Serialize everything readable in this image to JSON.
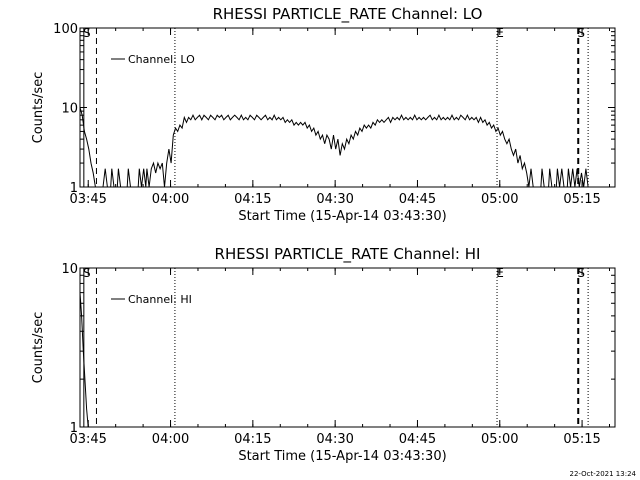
{
  "footer": {
    "timestamp": "22-Oct-2021 13:24"
  },
  "chart_data": [
    {
      "type": "line",
      "title": "RHESSI PARTICLE_RATE Channel: LO",
      "xlabel": "Start Time (15-Apr-14 03:43:30)",
      "ylabel": "Counts/sec",
      "x_unit": "minutes since 03:43:30",
      "xlim": [
        0,
        97.5
      ],
      "x_ticks": [
        {
          "x": 1.5,
          "label": "03:45"
        },
        {
          "x": 16.5,
          "label": "04:00"
        },
        {
          "x": 31.5,
          "label": "04:15"
        },
        {
          "x": 46.5,
          "label": "04:30"
        },
        {
          "x": 61.5,
          "label": "04:45"
        },
        {
          "x": 76.5,
          "label": "05:00"
        },
        {
          "x": 91.5,
          "label": "05:15"
        }
      ],
      "yscale": "log",
      "ylim": [
        1,
        100
      ],
      "y_ticks": [
        {
          "y": 1,
          "label": "1"
        },
        {
          "y": 10,
          "label": "10"
        },
        {
          "y": 100,
          "label": "100"
        }
      ],
      "legend": {
        "label": "Channel: LO",
        "position": "top-left"
      },
      "markers": [
        {
          "x": 0.7,
          "style": "solid",
          "label": "S"
        },
        {
          "x": 3.0,
          "style": "dashed",
          "label": ""
        },
        {
          "x": 17.3,
          "style": "dotted",
          "label": ""
        },
        {
          "x": 76.0,
          "style": "dotted",
          "label": "E"
        },
        {
          "x": 90.8,
          "style": "dashed",
          "label": "S"
        },
        {
          "x": 92.6,
          "style": "dotted",
          "label": ""
        }
      ],
      "series": [
        {
          "values": [
            [
              0,
              10
            ],
            [
              0.4,
              8
            ],
            [
              0.8,
              5
            ],
            [
              1.2,
              4
            ],
            [
              1.6,
              3
            ],
            [
              2.0,
              2
            ],
            [
              2.4,
              1.5
            ],
            [
              2.8,
              1
            ],
            [
              3.2,
              1
            ],
            [
              4.2,
              1
            ],
            [
              4.6,
              1.7
            ],
            [
              5.0,
              1
            ],
            [
              5.6,
              1
            ],
            [
              5.8,
              1.7
            ],
            [
              6.2,
              1
            ],
            [
              6.8,
              1
            ],
            [
              7.0,
              1.7
            ],
            [
              7.4,
              1
            ],
            [
              8.6,
              1
            ],
            [
              8.8,
              1.7
            ],
            [
              9.2,
              1
            ],
            [
              10.6,
              1
            ],
            [
              10.8,
              1.7
            ],
            [
              11.2,
              1
            ],
            [
              11.6,
              1.7
            ],
            [
              12.0,
              1
            ],
            [
              12.2,
              1.7
            ],
            [
              12.6,
              1
            ],
            [
              13.0,
              1.7
            ],
            [
              13.4,
              2
            ],
            [
              13.8,
              1.5
            ],
            [
              14.2,
              2
            ],
            [
              14.6,
              1.7
            ],
            [
              15.0,
              2
            ],
            [
              15.4,
              1
            ],
            [
              15.8,
              2
            ],
            [
              16.2,
              3
            ],
            [
              16.6,
              2
            ],
            [
              17.0,
              4.5
            ],
            [
              17.4,
              5.5
            ],
            [
              17.8,
              5
            ],
            [
              18.2,
              6
            ],
            [
              18.6,
              5.5
            ],
            [
              19.0,
              7.5
            ],
            [
              19.4,
              6.5
            ],
            [
              19.8,
              7.5
            ],
            [
              20.2,
              7
            ],
            [
              20.6,
              8
            ],
            [
              21.0,
              7
            ],
            [
              21.4,
              7.5
            ],
            [
              21.8,
              8
            ],
            [
              22.2,
              7
            ],
            [
              22.6,
              8
            ],
            [
              23.0,
              7.5
            ],
            [
              23.4,
              7
            ],
            [
              23.8,
              8
            ],
            [
              24.2,
              7.5
            ],
            [
              24.6,
              7
            ],
            [
              25.0,
              8
            ],
            [
              25.4,
              7.5
            ],
            [
              25.8,
              8
            ],
            [
              26.2,
              7
            ],
            [
              26.6,
              7.5
            ],
            [
              27.0,
              8
            ],
            [
              27.4,
              7
            ],
            [
              27.8,
              7.5
            ],
            [
              28.2,
              8
            ],
            [
              28.6,
              7.5
            ],
            [
              29.0,
              7
            ],
            [
              29.4,
              8
            ],
            [
              29.8,
              7
            ],
            [
              30.2,
              7.5
            ],
            [
              30.6,
              7
            ],
            [
              31.0,
              8
            ],
            [
              31.4,
              7.5
            ],
            [
              31.8,
              7
            ],
            [
              32.2,
              8
            ],
            [
              32.6,
              7.5
            ],
            [
              33.0,
              7
            ],
            [
              33.4,
              7.5
            ],
            [
              33.8,
              8
            ],
            [
              34.2,
              7
            ],
            [
              34.6,
              7.5
            ],
            [
              35.0,
              7
            ],
            [
              35.4,
              8
            ],
            [
              35.8,
              7
            ],
            [
              36.2,
              7.5
            ],
            [
              36.6,
              7
            ],
            [
              37.0,
              7.5
            ],
            [
              37.4,
              6.5
            ],
            [
              37.8,
              7
            ],
            [
              38.2,
              6.5
            ],
            [
              38.6,
              7
            ],
            [
              39.0,
              6
            ],
            [
              39.4,
              6.5
            ],
            [
              39.8,
              6
            ],
            [
              40.2,
              6.5
            ],
            [
              40.6,
              6
            ],
            [
              41.0,
              6.5
            ],
            [
              41.4,
              5.5
            ],
            [
              41.8,
              6
            ],
            [
              42.2,
              5
            ],
            [
              42.6,
              5.5
            ],
            [
              43.0,
              4.5
            ],
            [
              43.4,
              5
            ],
            [
              43.8,
              4
            ],
            [
              44.2,
              4.5
            ],
            [
              44.6,
              3.5
            ],
            [
              45.0,
              4.5
            ],
            [
              45.4,
              4
            ],
            [
              45.8,
              3
            ],
            [
              46.2,
              4.5
            ],
            [
              46.6,
              3
            ],
            [
              47.0,
              4
            ],
            [
              47.4,
              2.5
            ],
            [
              47.8,
              3.5
            ],
            [
              48.2,
              3
            ],
            [
              48.6,
              4
            ],
            [
              49.0,
              3.5
            ],
            [
              49.4,
              4.5
            ],
            [
              49.8,
              4
            ],
            [
              50.2,
              5
            ],
            [
              50.6,
              4.5
            ],
            [
              51.0,
              5.5
            ],
            [
              51.4,
              5
            ],
            [
              51.8,
              6
            ],
            [
              52.2,
              5.5
            ],
            [
              52.6,
              6
            ],
            [
              53.0,
              5.5
            ],
            [
              53.4,
              6.5
            ],
            [
              53.8,
              6
            ],
            [
              54.2,
              7
            ],
            [
              54.6,
              6.5
            ],
            [
              55.0,
              7
            ],
            [
              55.4,
              6.5
            ],
            [
              55.8,
              7
            ],
            [
              56.2,
              7.5
            ],
            [
              56.6,
              6.5
            ],
            [
              57.0,
              7.5
            ],
            [
              57.4,
              7
            ],
            [
              57.8,
              7.5
            ],
            [
              58.2,
              7
            ],
            [
              58.6,
              8
            ],
            [
              59.0,
              7
            ],
            [
              59.4,
              7.5
            ],
            [
              59.8,
              7
            ],
            [
              60.2,
              7.5
            ],
            [
              60.6,
              7
            ],
            [
              61.0,
              8
            ],
            [
              61.4,
              7
            ],
            [
              61.8,
              7.5
            ],
            [
              62.2,
              7
            ],
            [
              62.6,
              7.5
            ],
            [
              63.0,
              7
            ],
            [
              63.4,
              7.5
            ],
            [
              63.8,
              8
            ],
            [
              64.2,
              7
            ],
            [
              64.6,
              7.5
            ],
            [
              65.0,
              7
            ],
            [
              65.4,
              8
            ],
            [
              65.8,
              7
            ],
            [
              66.2,
              7.5
            ],
            [
              66.6,
              7
            ],
            [
              67.0,
              7.5
            ],
            [
              67.4,
              7
            ],
            [
              67.8,
              8
            ],
            [
              68.2,
              7
            ],
            [
              68.6,
              7.5
            ],
            [
              69.0,
              7
            ],
            [
              69.4,
              8
            ],
            [
              69.8,
              7.5
            ],
            [
              70.2,
              7
            ],
            [
              70.6,
              8
            ],
            [
              71.0,
              7
            ],
            [
              71.4,
              7.5
            ],
            [
              71.8,
              7
            ],
            [
              72.2,
              7.5
            ],
            [
              72.6,
              6.5
            ],
            [
              73.0,
              7.5
            ],
            [
              73.4,
              6.5
            ],
            [
              73.8,
              7
            ],
            [
              74.2,
              6
            ],
            [
              74.6,
              6.5
            ],
            [
              75.0,
              5.5
            ],
            [
              75.4,
              6
            ],
            [
              75.8,
              5
            ],
            [
              76.2,
              5.5
            ],
            [
              76.6,
              4.5
            ],
            [
              77.0,
              5
            ],
            [
              77.4,
              4
            ],
            [
              77.8,
              3.5
            ],
            [
              78.2,
              4
            ],
            [
              78.6,
              3
            ],
            [
              79.0,
              2.5
            ],
            [
              79.4,
              3
            ],
            [
              79.8,
              2
            ],
            [
              80.2,
              2.5
            ],
            [
              80.6,
              1.7
            ],
            [
              81.0,
              2
            ],
            [
              81.4,
              1.5
            ],
            [
              81.8,
              1
            ],
            [
              82.2,
              1.7
            ],
            [
              82.6,
              1
            ],
            [
              84.0,
              1
            ],
            [
              84.2,
              1.7
            ],
            [
              84.6,
              1
            ],
            [
              85.4,
              1
            ],
            [
              85.6,
              1.7
            ],
            [
              86.0,
              1
            ],
            [
              86.8,
              1
            ],
            [
              87.0,
              1.7
            ],
            [
              87.4,
              1
            ],
            [
              87.8,
              1.7
            ],
            [
              88.2,
              1
            ],
            [
              88.8,
              1
            ],
            [
              89.0,
              1.7
            ],
            [
              89.4,
              1
            ],
            [
              89.8,
              1.7
            ],
            [
              90.2,
              1
            ],
            [
              90.6,
              1.7
            ],
            [
              91.0,
              1
            ],
            [
              91.4,
              1.5
            ],
            [
              91.8,
              1
            ],
            [
              92.2,
              1.7
            ],
            [
              92.6,
              1
            ],
            [
              97.5,
              1
            ]
          ]
        }
      ]
    },
    {
      "type": "line",
      "title": "RHESSI PARTICLE_RATE Channel: HI",
      "xlabel": "Start Time (15-Apr-14 03:43:30)",
      "ylabel": "Counts/sec",
      "x_unit": "minutes since 03:43:30",
      "xlim": [
        0,
        97.5
      ],
      "x_ticks": [
        {
          "x": 1.5,
          "label": "03:45"
        },
        {
          "x": 16.5,
          "label": "04:00"
        },
        {
          "x": 31.5,
          "label": "04:15"
        },
        {
          "x": 46.5,
          "label": "04:30"
        },
        {
          "x": 61.5,
          "label": "04:45"
        },
        {
          "x": 76.5,
          "label": "05:00"
        },
        {
          "x": 91.5,
          "label": "05:15"
        }
      ],
      "yscale": "log",
      "ylim": [
        1,
        10
      ],
      "y_ticks": [
        {
          "y": 1,
          "label": "1"
        },
        {
          "y": 10,
          "label": "10"
        }
      ],
      "legend": {
        "label": "Channel: HI",
        "position": "top-left"
      },
      "markers": [
        {
          "x": 0.7,
          "style": "solid",
          "label": "S"
        },
        {
          "x": 3.0,
          "style": "dashed",
          "label": ""
        },
        {
          "x": 17.3,
          "style": "dotted",
          "label": ""
        },
        {
          "x": 76.0,
          "style": "dotted",
          "label": "E"
        },
        {
          "x": 90.8,
          "style": "dashed",
          "label": "S"
        },
        {
          "x": 92.6,
          "style": "dotted",
          "label": ""
        }
      ],
      "series": [
        {
          "values": [
            [
              0,
              7
            ],
            [
              0.3,
              5
            ],
            [
              0.6,
              3
            ],
            [
              0.9,
              2
            ],
            [
              1.2,
              1.3
            ],
            [
              1.5,
              1
            ],
            [
              97.5,
              1
            ]
          ]
        }
      ]
    }
  ]
}
